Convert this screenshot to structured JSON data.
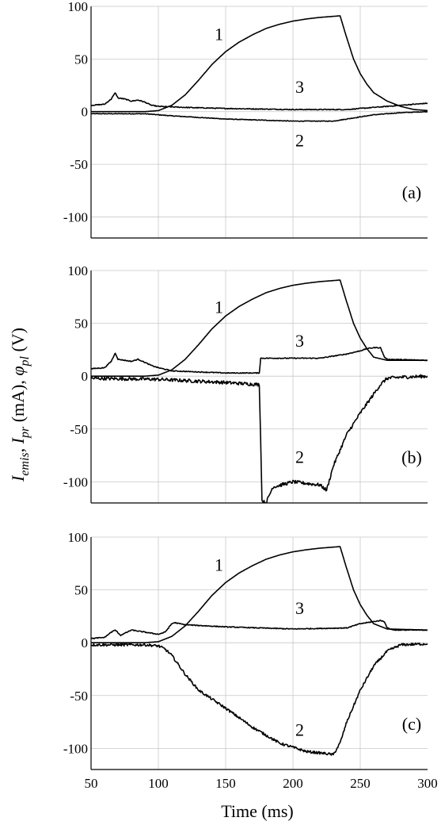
{
  "figure": {
    "x_axis_title": "Time (ms)",
    "y_axis_title": {
      "I1": "I",
      "emis": "emis",
      "sep1": ", ",
      "I2": "I",
      "pr": "pr",
      "unit_ma": " (mA), ",
      "phi": "φ",
      "pl": "pl",
      "unit_v": " (V)"
    }
  },
  "chart_data": [
    {
      "type": "line",
      "panel_label": "(a)",
      "xlim": [
        50,
        300
      ],
      "ylim": [
        -120,
        100
      ],
      "x_ticks": [
        50,
        100,
        150,
        200,
        250,
        300
      ],
      "y_ticks": [
        100,
        50,
        0,
        -50,
        -100
      ],
      "x_tick_labels": [],
      "y_tick_labels": [
        "100",
        "50",
        "0",
        "-50",
        "-100"
      ],
      "grid": true,
      "series": [
        {
          "curve_label": "1",
          "label_at": [
            145,
            68
          ],
          "noise": 0,
          "points": [
            [
              50,
              0
            ],
            [
              90,
              0
            ],
            [
              100,
              1
            ],
            [
              110,
              6
            ],
            [
              120,
              16
            ],
            [
              130,
              30
            ],
            [
              140,
              45
            ],
            [
              150,
              57
            ],
            [
              160,
              66
            ],
            [
              170,
              73
            ],
            [
              180,
              79
            ],
            [
              190,
              83
            ],
            [
              200,
              86
            ],
            [
              210,
              88
            ],
            [
              220,
              89.5
            ],
            [
              230,
              90.5
            ],
            [
              235,
              91
            ],
            [
              240,
              70
            ],
            [
              245,
              50
            ],
            [
              250,
              36
            ],
            [
              255,
              26
            ],
            [
              260,
              18
            ],
            [
              270,
              10
            ],
            [
              280,
              5
            ],
            [
              290,
              2
            ],
            [
              300,
              1
            ]
          ]
        },
        {
          "curve_label": "2",
          "label_at": [
            205,
            -33
          ],
          "noise": 0.3,
          "points": [
            [
              50,
              -2
            ],
            [
              90,
              -2
            ],
            [
              100,
              -3
            ],
            [
              110,
              -4
            ],
            [
              150,
              -7
            ],
            [
              200,
              -9
            ],
            [
              230,
              -9
            ],
            [
              240,
              -7
            ],
            [
              260,
              -3
            ],
            [
              280,
              -1
            ],
            [
              300,
              0
            ]
          ]
        },
        {
          "curve_label": "3",
          "label_at": [
            205,
            18
          ],
          "noise": 0.4,
          "points": [
            [
              50,
              6
            ],
            [
              60,
              7
            ],
            [
              65,
              12
            ],
            [
              68,
              18
            ],
            [
              70,
              13
            ],
            [
              75,
              12
            ],
            [
              80,
              10
            ],
            [
              85,
              11
            ],
            [
              90,
              9
            ],
            [
              95,
              6
            ],
            [
              100,
              5
            ],
            [
              120,
              4
            ],
            [
              150,
              3
            ],
            [
              200,
              2
            ],
            [
              240,
              2
            ],
            [
              260,
              4
            ],
            [
              280,
              6
            ],
            [
              300,
              8
            ]
          ]
        }
      ]
    },
    {
      "type": "line",
      "panel_label": "(b)",
      "xlim": [
        50,
        300
      ],
      "ylim": [
        -120,
        100
      ],
      "x_ticks": [
        50,
        100,
        150,
        200,
        250,
        300
      ],
      "y_ticks": [
        100,
        50,
        0,
        -50,
        -100
      ],
      "x_tick_labels": [],
      "y_tick_labels": [
        "100",
        "50",
        "0",
        "-50",
        "-100"
      ],
      "grid": true,
      "series": [
        {
          "curve_label": "1",
          "label_at": [
            145,
            60
          ],
          "noise": 0,
          "points": [
            [
              50,
              0
            ],
            [
              90,
              0
            ],
            [
              100,
              1
            ],
            [
              110,
              6
            ],
            [
              120,
              16
            ],
            [
              130,
              30
            ],
            [
              140,
              45
            ],
            [
              150,
              57
            ],
            [
              160,
              66
            ],
            [
              170,
              73
            ],
            [
              180,
              79
            ],
            [
              190,
              83
            ],
            [
              200,
              86
            ],
            [
              210,
              88
            ],
            [
              220,
              89.5
            ],
            [
              230,
              90.5
            ],
            [
              235,
              91
            ],
            [
              240,
              70
            ],
            [
              245,
              50
            ],
            [
              250,
              36
            ],
            [
              255,
              26
            ],
            [
              260,
              18
            ],
            [
              270,
              15
            ],
            [
              300,
              15
            ]
          ]
        },
        {
          "curve_label": "2",
          "label_at": [
            205,
            -82
          ],
          "noise": 1.6,
          "points": [
            [
              50,
              -2
            ],
            [
              100,
              -3
            ],
            [
              150,
              -6
            ],
            [
              175,
              -8
            ],
            [
              176,
              -60
            ],
            [
              177,
              -118
            ],
            [
              180,
              -120
            ],
            [
              185,
              -105
            ],
            [
              200,
              -100
            ],
            [
              220,
              -103
            ],
            [
              225,
              -108
            ],
            [
              230,
              -85
            ],
            [
              240,
              -55
            ],
            [
              250,
              -35
            ],
            [
              260,
              -17
            ],
            [
              265,
              -8
            ],
            [
              270,
              -2
            ],
            [
              280,
              -1
            ],
            [
              300,
              0
            ]
          ]
        },
        {
          "curve_label": "3",
          "label_at": [
            205,
            28
          ],
          "noise": 0.4,
          "points": [
            [
              50,
              7
            ],
            [
              60,
              8
            ],
            [
              65,
              14
            ],
            [
              68,
              22
            ],
            [
              70,
              16
            ],
            [
              75,
              15
            ],
            [
              80,
              14
            ],
            [
              85,
              16
            ],
            [
              90,
              13
            ],
            [
              95,
              10
            ],
            [
              100,
              8
            ],
            [
              110,
              5
            ],
            [
              150,
              3
            ],
            [
              175,
              3
            ],
            [
              176,
              17
            ],
            [
              180,
              17
            ],
            [
              220,
              17
            ],
            [
              240,
              21
            ],
            [
              250,
              24
            ],
            [
              255,
              26
            ],
            [
              260,
              27
            ],
            [
              265,
              27
            ],
            [
              268,
              18
            ],
            [
              270,
              16
            ],
            [
              300,
              15
            ]
          ]
        }
      ]
    },
    {
      "type": "line",
      "panel_label": "(c)",
      "xlim": [
        50,
        300
      ],
      "ylim": [
        -120,
        100
      ],
      "x_ticks": [
        50,
        100,
        150,
        200,
        250,
        300
      ],
      "y_ticks": [
        100,
        50,
        0,
        -50,
        -100
      ],
      "x_tick_labels": [
        "50",
        "100",
        "150",
        "200",
        "250",
        "300"
      ],
      "y_tick_labels": [
        "100",
        "50",
        "0",
        "-50",
        "-100"
      ],
      "grid": true,
      "series": [
        {
          "curve_label": "1",
          "label_at": [
            145,
            68
          ],
          "noise": 0,
          "points": [
            [
              50,
              0
            ],
            [
              90,
              0
            ],
            [
              100,
              1
            ],
            [
              110,
              6
            ],
            [
              120,
              16
            ],
            [
              130,
              30
            ],
            [
              140,
              45
            ],
            [
              150,
              57
            ],
            [
              160,
              66
            ],
            [
              170,
              73
            ],
            [
              180,
              79
            ],
            [
              190,
              83
            ],
            [
              200,
              86
            ],
            [
              210,
              88
            ],
            [
              220,
              89.5
            ],
            [
              230,
              90.5
            ],
            [
              235,
              91
            ],
            [
              240,
              70
            ],
            [
              245,
              50
            ],
            [
              250,
              36
            ],
            [
              255,
              26
            ],
            [
              260,
              18
            ],
            [
              270,
              13
            ],
            [
              300,
              12
            ]
          ]
        },
        {
          "curve_label": "2",
          "label_at": [
            205,
            -88
          ],
          "noise": 1.2,
          "points": [
            [
              50,
              -2
            ],
            [
              90,
              -2
            ],
            [
              100,
              -3
            ],
            [
              105,
              -6
            ],
            [
              110,
              -12
            ],
            [
              120,
              -30
            ],
            [
              130,
              -45
            ],
            [
              150,
              -62
            ],
            [
              170,
              -80
            ],
            [
              190,
              -95
            ],
            [
              210,
              -103
            ],
            [
              225,
              -105
            ],
            [
              230,
              -106
            ],
            [
              235,
              -95
            ],
            [
              240,
              -75
            ],
            [
              250,
              -45
            ],
            [
              260,
              -22
            ],
            [
              270,
              -8
            ],
            [
              280,
              -2
            ],
            [
              300,
              -1
            ]
          ]
        },
        {
          "curve_label": "3",
          "label_at": [
            205,
            27
          ],
          "noise": 0.4,
          "points": [
            [
              50,
              4
            ],
            [
              60,
              5
            ],
            [
              65,
              10
            ],
            [
              68,
              12
            ],
            [
              72,
              7
            ],
            [
              80,
              12
            ],
            [
              90,
              10
            ],
            [
              100,
              8
            ],
            [
              105,
              10
            ],
            [
              110,
              18
            ],
            [
              112,
              19
            ],
            [
              120,
              17
            ],
            [
              150,
              15
            ],
            [
              200,
              13
            ],
            [
              240,
              14
            ],
            [
              250,
              18
            ],
            [
              260,
              20
            ],
            [
              265,
              21
            ],
            [
              268,
              20
            ],
            [
              270,
              14
            ],
            [
              275,
              12
            ],
            [
              300,
              12
            ]
          ]
        }
      ]
    }
  ]
}
